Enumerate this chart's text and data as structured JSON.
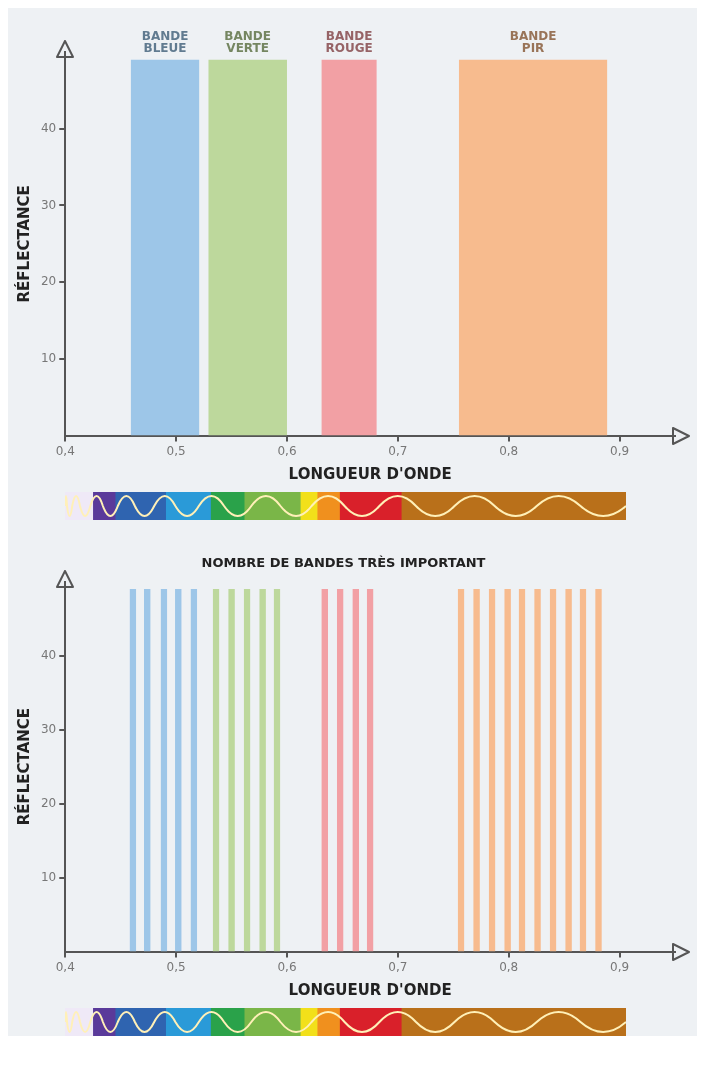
{
  "chart_data": [
    {
      "type": "area",
      "xlabel": "LONGUEUR D'ONDE",
      "ylabel": "RÉFLECTANCE",
      "xlim": [
        0.4,
        0.95
      ],
      "ylim": [
        0,
        50
      ],
      "xticks": [
        {
          "value": 0.4,
          "label": "0,4"
        },
        {
          "value": 0.5,
          "label": "0,5"
        },
        {
          "value": 0.6,
          "label": "0,6"
        },
        {
          "value": 0.7,
          "label": "0,7"
        },
        {
          "value": 0.8,
          "label": "0,8"
        },
        {
          "value": 0.9,
          "label": "0,9"
        }
      ],
      "yticks": [
        10,
        20,
        30,
        40
      ],
      "series": [
        {
          "name": "BANDE BLEUE",
          "color": "#9dc6e8",
          "x": [
            0.459,
            0.521
          ],
          "values": [
            49,
            49
          ]
        },
        {
          "name": "BANDE VERTE",
          "color": "#bdd89c",
          "x": [
            0.529,
            0.6
          ],
          "values": [
            49,
            49
          ]
        },
        {
          "name": "BANDE ROUGE",
          "color": "#f2a0a4",
          "x": [
            0.631,
            0.681
          ],
          "values": [
            49,
            49
          ]
        },
        {
          "name": "BANDE PIR",
          "color": "#f7bb8e",
          "x": [
            0.755,
            0.889
          ],
          "values": [
            49,
            49
          ]
        }
      ]
    },
    {
      "type": "area",
      "title": "NOMBRE DE BANDES TRÈS IMPORTANT",
      "xlabel": "LONGUEUR D'ONDE",
      "ylabel": "RÉFLECTANCE",
      "xlim": [
        0.4,
        0.95
      ],
      "ylim": [
        0,
        50
      ],
      "xticks": [
        {
          "value": 0.4,
          "label": "0,4"
        },
        {
          "value": 0.5,
          "label": "0,5"
        },
        {
          "value": 0.6,
          "label": "0,6"
        },
        {
          "value": 0.7,
          "label": "0,7"
        },
        {
          "value": 0.8,
          "label": "0,8"
        },
        {
          "value": 0.9,
          "label": "0,9"
        }
      ],
      "yticks": [
        10,
        20,
        30,
        40
      ],
      "series": [
        {
          "color": "#9dc6e8",
          "x": [
            0.458,
            0.464
          ],
          "values": [
            49,
            49
          ]
        },
        {
          "color": "#9dc6e8",
          "x": [
            0.471,
            0.477
          ],
          "values": [
            49,
            49
          ]
        },
        {
          "color": "#9dc6e8",
          "x": [
            0.486,
            0.492
          ],
          "values": [
            49,
            49
          ]
        },
        {
          "color": "#9dc6e8",
          "x": [
            0.499,
            0.505
          ],
          "values": [
            49,
            49
          ]
        },
        {
          "color": "#9dc6e8",
          "x": [
            0.513,
            0.519
          ],
          "values": [
            49,
            49
          ]
        },
        {
          "color": "#bdd89c",
          "x": [
            0.533,
            0.539
          ],
          "values": [
            49,
            49
          ]
        },
        {
          "color": "#bdd89c",
          "x": [
            0.547,
            0.553
          ],
          "values": [
            49,
            49
          ]
        },
        {
          "color": "#bdd89c",
          "x": [
            0.561,
            0.567
          ],
          "values": [
            49,
            49
          ]
        },
        {
          "color": "#bdd89c",
          "x": [
            0.575,
            0.581
          ],
          "values": [
            49,
            49
          ]
        },
        {
          "color": "#bdd89c",
          "x": [
            0.588,
            0.594
          ],
          "values": [
            49,
            49
          ]
        },
        {
          "color": "#f2a0a4",
          "x": [
            0.631,
            0.637
          ],
          "values": [
            49,
            49
          ]
        },
        {
          "color": "#f2a0a4",
          "x": [
            0.645,
            0.651
          ],
          "values": [
            49,
            49
          ]
        },
        {
          "color": "#f2a0a4",
          "x": [
            0.659,
            0.665
          ],
          "values": [
            49,
            49
          ]
        },
        {
          "color": "#f2a0a4",
          "x": [
            0.672,
            0.678
          ],
          "values": [
            49,
            49
          ]
        },
        {
          "color": "#f7bb8e",
          "x": [
            0.754,
            0.76
          ],
          "values": [
            49,
            49
          ]
        },
        {
          "color": "#f7bb8e",
          "x": [
            0.768,
            0.774
          ],
          "values": [
            49,
            49
          ]
        },
        {
          "color": "#f7bb8e",
          "x": [
            0.782,
            0.788
          ],
          "values": [
            49,
            49
          ]
        },
        {
          "color": "#f7bb8e",
          "x": [
            0.796,
            0.802
          ],
          "values": [
            49,
            49
          ]
        },
        {
          "color": "#f7bb8e",
          "x": [
            0.809,
            0.815
          ],
          "values": [
            49,
            49
          ]
        },
        {
          "color": "#f7bb8e",
          "x": [
            0.823,
            0.829
          ],
          "values": [
            49,
            49
          ]
        },
        {
          "color": "#f7bb8e",
          "x": [
            0.837,
            0.843
          ],
          "values": [
            49,
            49
          ]
        },
        {
          "color": "#f7bb8e",
          "x": [
            0.851,
            0.857
          ],
          "values": [
            49,
            49
          ]
        },
        {
          "color": "#f7bb8e",
          "x": [
            0.864,
            0.87
          ],
          "values": [
            49,
            49
          ]
        },
        {
          "color": "#f7bb8e",
          "x": [
            0.878,
            0.884
          ],
          "values": [
            49,
            49
          ]
        }
      ]
    }
  ]
}
